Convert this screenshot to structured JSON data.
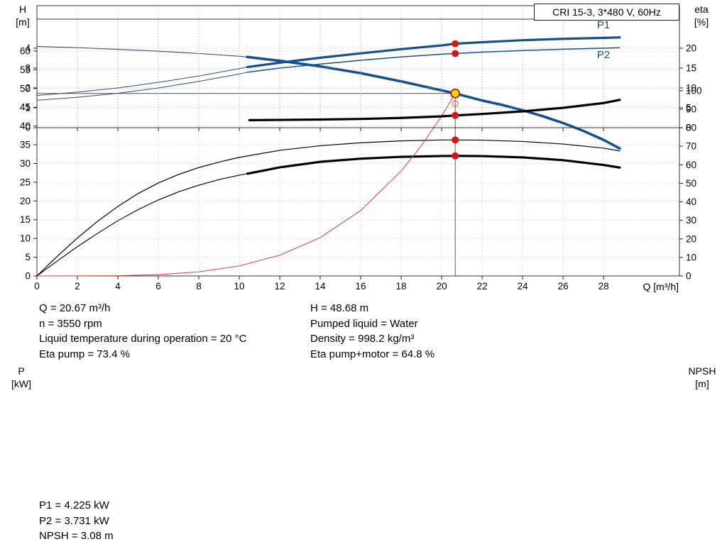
{
  "title_box": {
    "label": "CRI 15-3, 3*480 V, 60Hz"
  },
  "colors": {
    "curve_blue": "#17508c",
    "curve_red": "#de4a40",
    "dot_red": "#e01212",
    "duty_fill": "#ffd800",
    "duty_stroke": "#cc1111"
  },
  "axis_labels": {
    "top_left_1": "H",
    "top_left_2": "[m]",
    "top_right_1": "eta",
    "top_right_2": "[%]",
    "top_x": "Q [m³/h]",
    "bottom_left_1": "P",
    "bottom_left_2": "[kW]",
    "bottom_right_1": "NPSH",
    "bottom_right_2": "[m]"
  },
  "info_top": {
    "col1": [
      "Q = 20.67 m³/h",
      "n = 3550 rpm",
      "Liquid temperature during operation = 20 °C",
      "Eta pump = 73.4 %"
    ],
    "col2": [
      "H = 48.68 m",
      "Pumped liquid = Water",
      "Density = 998.2 kg/m³",
      "Eta pump+motor = 64.8 %"
    ]
  },
  "info_bottom": [
    "P1 = 4.225 kW",
    "P2 = 3.731 kW",
    "NPSH = 3.08 m"
  ],
  "chart_data": [
    {
      "type": "line",
      "title": "CRI 15-3, 3*480 V, 60Hz",
      "xlabel": "Q [m³/h]",
      "ylabel_left": "H [m]",
      "ylabel_right": "eta [%]",
      "xlim": [
        0,
        31.75
      ],
      "ylim_left": [
        0,
        72.1
      ],
      "ylim_right": [
        0,
        145.9
      ],
      "x_ticks": [
        0,
        2,
        4,
        6,
        8,
        10,
        12,
        14,
        16,
        18,
        20,
        22,
        24,
        26,
        28
      ],
      "y_left_ticks": [
        0,
        5,
        10,
        15,
        20,
        25,
        30,
        35,
        40,
        45,
        50,
        55,
        60
      ],
      "y_right_ticks": [
        0,
        10,
        20,
        30,
        40,
        50,
        60,
        70,
        80,
        90,
        100
      ],
      "show_x_labels": true,
      "series": [
        {
          "name": "eta-pump-motor-lead",
          "axis": "right",
          "color": "#000000",
          "width": 1.1,
          "x": [
            0,
            1,
            2,
            3,
            4,
            5,
            6,
            7,
            8,
            9,
            10,
            10.4
          ],
          "y": [
            0,
            8,
            15.8,
            23,
            29.8,
            35.8,
            41,
            45.4,
            49,
            52,
            54.4,
            55.2
          ]
        },
        {
          "name": "eta-pump-motor",
          "axis": "right",
          "color": "#000000",
          "width": 3.2,
          "x": [
            10.4,
            12,
            14,
            16,
            18,
            20,
            20.67,
            22,
            24,
            26,
            28,
            28.8
          ],
          "y": [
            55.2,
            58.6,
            61.6,
            63.3,
            64.3,
            64.75,
            64.8,
            64.7,
            64.0,
            62.5,
            59.9,
            58.5
          ]
        },
        {
          "name": "eta-pump",
          "axis": "right",
          "color": "#000000",
          "width": 1.2,
          "x": [
            0,
            1,
            2,
            3,
            4,
            5,
            6,
            7,
            8,
            9,
            10,
            12,
            14,
            16,
            18,
            20,
            20.67,
            22,
            24,
            26,
            28,
            28.8
          ],
          "y": [
            0,
            10.5,
            20.5,
            29.5,
            37.5,
            44.5,
            50.2,
            54.8,
            58.5,
            61.5,
            64,
            67.8,
            70.3,
            71.9,
            72.9,
            73.4,
            73.4,
            73.3,
            72.6,
            71.2,
            69,
            67.5
          ]
        },
        {
          "name": "system-resistance",
          "axis": "left",
          "color": "#de4a40",
          "width": 1.1,
          "x": [
            0,
            2,
            4,
            6,
            8,
            10,
            12,
            14,
            16,
            18,
            19,
            20,
            20.67
          ],
          "y": [
            0,
            0.01,
            0.07,
            0.34,
            1.09,
            2.67,
            5.53,
            10.24,
            17.47,
            27.99,
            34.76,
            42.67,
            48.68
          ]
        },
        {
          "name": "qh-lead",
          "axis": "left",
          "color": "#2d4d7e",
          "width": 1.1,
          "x": [
            0,
            2,
            4,
            6,
            8,
            10,
            10.4
          ],
          "y": [
            61.2,
            60.9,
            60.45,
            59.95,
            59.35,
            58.6,
            58.42
          ]
        },
        {
          "name": "qh",
          "axis": "left",
          "color": "#17508c",
          "width": 3.6,
          "x": [
            10.4,
            12,
            14,
            16,
            18,
            20,
            20.67,
            22,
            23,
            24,
            25,
            26,
            27,
            28,
            28.8
          ],
          "y": [
            58.42,
            57.4,
            55.9,
            54.1,
            51.9,
            49.5,
            48.68,
            46.8,
            45.6,
            44.2,
            42.6,
            40.8,
            38.7,
            36.3,
            34.0
          ]
        }
      ],
      "ref_lines": [
        {
          "type": "v",
          "x": 20.67,
          "y0": 0,
          "y1": 48.68
        },
        {
          "type": "h",
          "y": 48.68,
          "x0": 0,
          "x1": 20.67
        }
      ],
      "markers": [
        {
          "x": 20.67,
          "y": 73.4,
          "axis": "right",
          "kind": "dot"
        },
        {
          "x": 20.67,
          "y": 64.8,
          "axis": "right",
          "kind": "dot"
        },
        {
          "x": 20.67,
          "y": 46.0,
          "axis": "left",
          "kind": "open"
        },
        {
          "x": 20.67,
          "y": 48.68,
          "axis": "left",
          "kind": "duty"
        }
      ],
      "curve_labels": []
    },
    {
      "type": "line",
      "title": "",
      "xlabel": "",
      "ylabel_left": "P [kW]",
      "ylabel_right": "NPSH [m]",
      "xlim": [
        0,
        31.75
      ],
      "ylim_left": [
        0,
        5.46
      ],
      "ylim_right": [
        0,
        27.3
      ],
      "x_ticks": [
        0,
        2,
        4,
        6,
        8,
        10,
        12,
        14,
        16,
        18,
        20,
        22,
        24,
        26,
        28
      ],
      "y_left_ticks": [
        0,
        1,
        2,
        3,
        4
      ],
      "y_right_ticks": [
        0,
        5,
        10,
        15,
        20
      ],
      "show_x_labels": false,
      "series": [
        {
          "name": "p1-lead",
          "axis": "left",
          "color": "#2d4d7e",
          "width": 1.0,
          "x": [
            0,
            2,
            4,
            6,
            8,
            10,
            10.4
          ],
          "y": [
            1.62,
            1.79,
            2.0,
            2.28,
            2.6,
            2.97,
            3.05
          ]
        },
        {
          "name": "p2-lead",
          "axis": "left",
          "color": "#2d4d7e",
          "width": 1.0,
          "x": [
            0,
            2,
            4,
            6,
            8,
            10,
            10.4
          ],
          "y": [
            1.38,
            1.53,
            1.73,
            2.0,
            2.33,
            2.7,
            2.79
          ]
        },
        {
          "name": "p2",
          "axis": "left",
          "color": "#17508c",
          "width": 1.5,
          "x": [
            10.4,
            12,
            14,
            16,
            18,
            20,
            20.67,
            22,
            24,
            26,
            28,
            28.8
          ],
          "y": [
            2.79,
            3.0,
            3.2,
            3.39,
            3.56,
            3.7,
            3.731,
            3.8,
            3.88,
            3.95,
            4.0,
            4.02
          ]
        },
        {
          "name": "p1",
          "axis": "left",
          "color": "#17508c",
          "width": 3.2,
          "x": [
            10.4,
            12,
            14,
            16,
            18,
            20,
            20.67,
            22,
            24,
            26,
            28,
            28.8
          ],
          "y": [
            3.05,
            3.27,
            3.52,
            3.74,
            3.95,
            4.14,
            4.225,
            4.3,
            4.4,
            4.47,
            4.52,
            4.54
          ]
        },
        {
          "name": "npsh",
          "axis": "right",
          "color": "#000000",
          "width": 3.2,
          "x": [
            10.5,
            12,
            14,
            16,
            18,
            20,
            20.67,
            22,
            24,
            26,
            28,
            28.8
          ],
          "y": [
            1.9,
            1.95,
            2.05,
            2.2,
            2.45,
            2.85,
            3.08,
            3.45,
            4.1,
            5.0,
            6.2,
            7.0
          ]
        }
      ],
      "ref_lines": [],
      "markers": [
        {
          "x": 20.67,
          "y": 4.225,
          "axis": "left",
          "kind": "dot"
        },
        {
          "x": 20.67,
          "y": 3.731,
          "axis": "left",
          "kind": "dot"
        },
        {
          "x": 20.67,
          "y": 3.08,
          "axis": "right",
          "kind": "dot"
        }
      ],
      "curve_labels": [
        {
          "text": "P1",
          "x": 28.0,
          "y": 5.0,
          "axis": "left"
        },
        {
          "text": "P2",
          "x": 28.0,
          "y": 3.5,
          "axis": "left"
        }
      ]
    }
  ]
}
